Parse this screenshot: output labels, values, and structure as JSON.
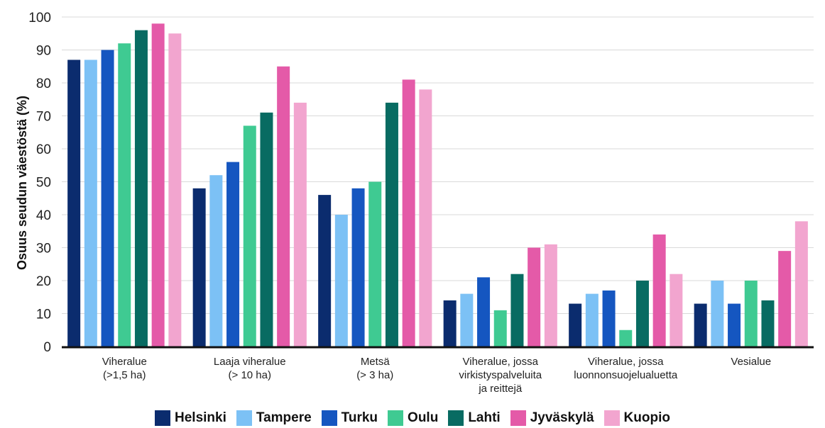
{
  "chart_data": {
    "type": "bar",
    "ylabel": "Osuus seudun väestöstä  (%)",
    "ylim": [
      0,
      100
    ],
    "yticks": [
      0,
      10,
      20,
      30,
      40,
      50,
      60,
      70,
      80,
      90,
      100
    ],
    "grid": true,
    "legend_position": "bottom",
    "categories": [
      [
        "Viheralue",
        "(>1,5 ha)"
      ],
      [
        "Laaja viheralue",
        "(> 10 ha)"
      ],
      [
        "Metsä",
        "(> 3 ha)"
      ],
      [
        "Viheralue, jossa",
        "virkistyspalveluita",
        "ja reittejä"
      ],
      [
        "Viheralue, jossa",
        "luonnonsuojelualuetta"
      ],
      [
        "Vesialue"
      ]
    ],
    "series": [
      {
        "name": "Helsinki",
        "color": "#0b2c6e",
        "values": [
          87,
          48,
          46,
          14,
          13,
          13
        ]
      },
      {
        "name": "Tampere",
        "color": "#7cc1f5",
        "values": [
          87,
          52,
          40,
          16,
          16,
          20
        ]
      },
      {
        "name": "Turku",
        "color": "#1556c0",
        "values": [
          90,
          56,
          48,
          21,
          17,
          13
        ]
      },
      {
        "name": "Oulu",
        "color": "#3fca92",
        "values": [
          92,
          67,
          50,
          11,
          5,
          20
        ]
      },
      {
        "name": "Lahti",
        "color": "#086b62",
        "values": [
          96,
          71,
          74,
          22,
          20,
          14
        ]
      },
      {
        "name": "Jyväskylä",
        "color": "#e45aa8",
        "values": [
          98,
          85,
          81,
          30,
          34,
          29
        ]
      },
      {
        "name": "Kuopio",
        "color": "#f2a5cf",
        "values": [
          95,
          74,
          78,
          31,
          22,
          38
        ]
      }
    ]
  }
}
